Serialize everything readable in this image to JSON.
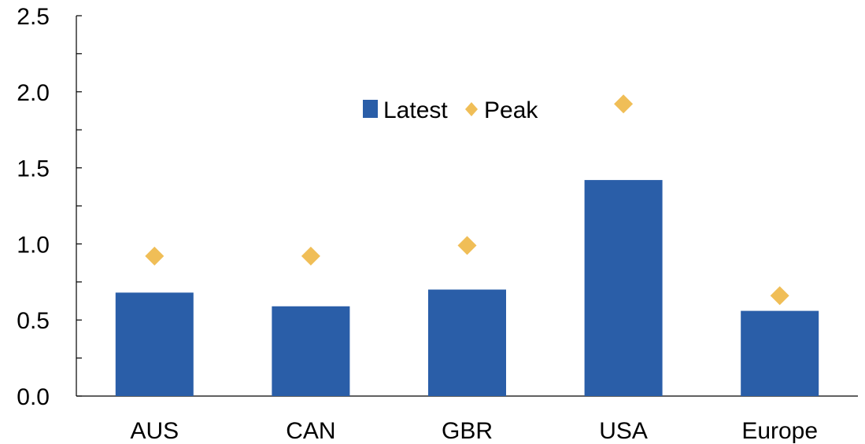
{
  "chart_data": {
    "type": "bar",
    "categories": [
      "AUS",
      "CAN",
      "GBR",
      "USA",
      "Europe"
    ],
    "series": [
      {
        "name": "Latest",
        "kind": "bar",
        "color": "#2a5ea8",
        "values": [
          0.68,
          0.59,
          0.7,
          1.42,
          0.56
        ]
      },
      {
        "name": "Peak",
        "kind": "marker",
        "marker": "diamond",
        "color": "#f0be57",
        "values": [
          0.92,
          0.92,
          0.99,
          1.92,
          0.66
        ]
      }
    ],
    "title": "",
    "xlabel": "",
    "ylabel": "",
    "ylim": [
      0,
      2.5
    ],
    "yticks": [
      "0.0",
      "0.5",
      "1.0",
      "1.5",
      "2.0",
      "2.5"
    ],
    "grid": false,
    "legend": {
      "position": "top-center",
      "entries": [
        "Latest",
        "Peak"
      ]
    }
  }
}
